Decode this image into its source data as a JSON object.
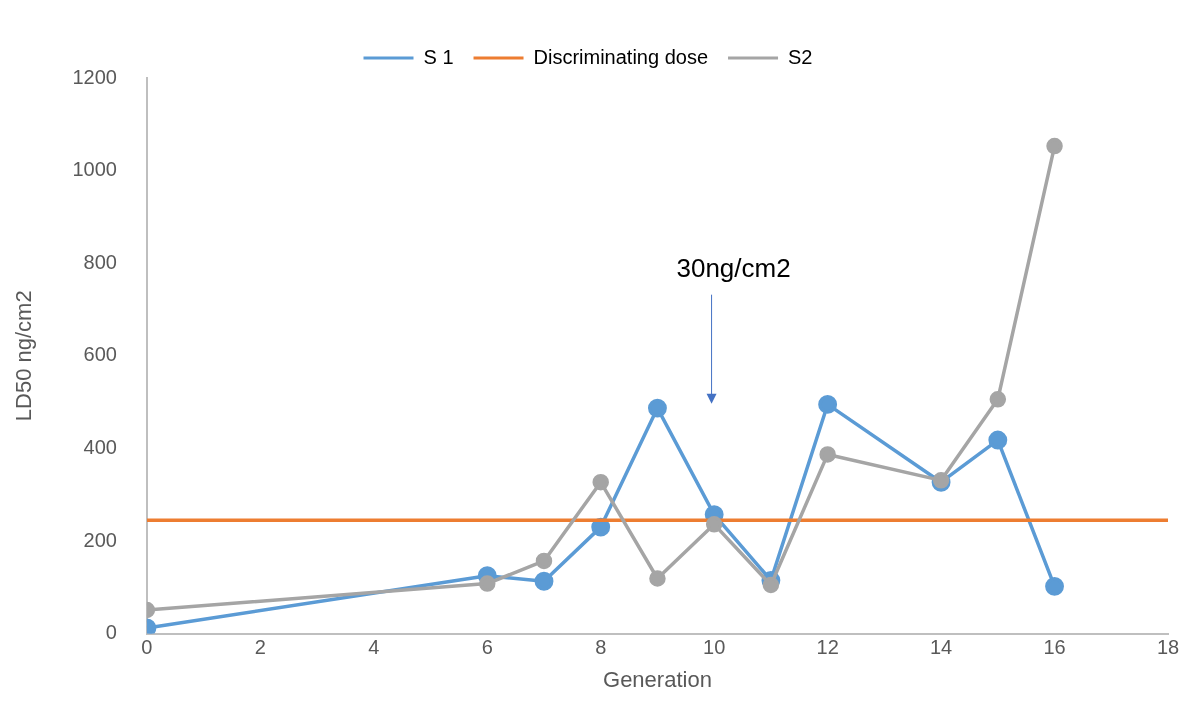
{
  "chart_data": {
    "type": "line",
    "xlabel": "Generation",
    "ylabel": "LD50 ng/cm2",
    "xlim": [
      0,
      18
    ],
    "xticks": [
      0,
      2,
      4,
      6,
      8,
      10,
      12,
      14,
      16,
      18
    ],
    "ylim": [
      0,
      1200
    ],
    "yticks": [
      0,
      200,
      400,
      600,
      800,
      1000,
      1200
    ],
    "x": [
      0,
      6,
      7,
      8,
      9,
      10,
      11,
      12,
      14,
      15,
      16
    ],
    "series": [
      {
        "name": "S 1",
        "color": "#5b9bd5",
        "marker": "circle",
        "values": [
          12,
          125,
          113,
          230,
          487,
          257,
          115,
          495,
          327,
          418,
          102
        ]
      },
      {
        "name": "Discriminating dose",
        "color": "#ed7d31",
        "marker": "none",
        "x": [
          0,
          18
        ],
        "values": [
          245,
          245
        ]
      },
      {
        "name": "S2",
        "color": "#a5a5a5",
        "marker": "circle",
        "values": [
          51,
          108,
          157,
          327,
          119,
          236,
          105,
          387,
          331,
          506,
          1053
        ]
      }
    ],
    "annotations": [
      "30ng/cm2"
    ],
    "grid": false,
    "legend": "top"
  }
}
